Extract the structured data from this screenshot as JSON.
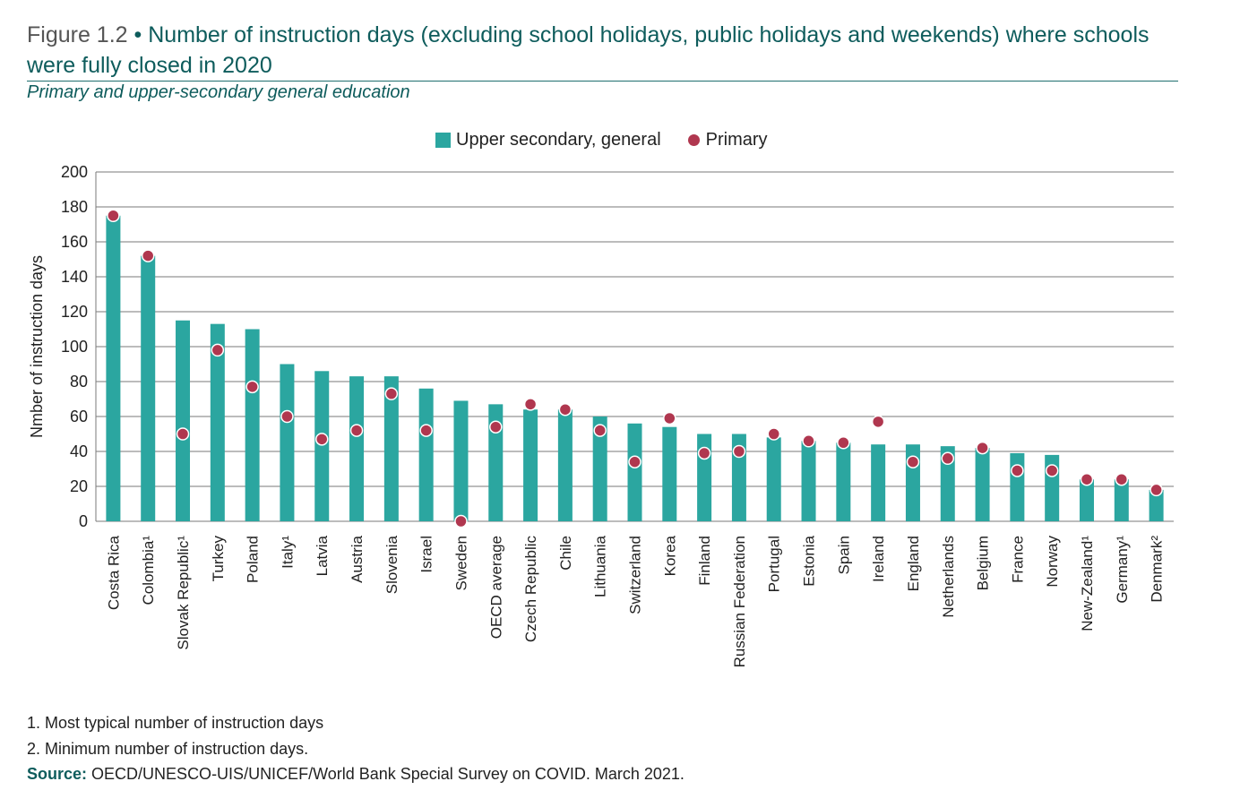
{
  "title": {
    "figure_label": "Figure 1.2",
    "bullet": "•",
    "text": "Number of instruction days (excluding school holidays, public holidays and weekends) where schools were fully closed in 2020"
  },
  "subtitle": "Primary and upper-secondary general education",
  "legend": {
    "series1": "Upper secondary, general",
    "series2": "Primary"
  },
  "colors": {
    "bar": "#2ba6a0",
    "dot": "#b0374f",
    "grid": "#7a7a7a",
    "title": "#0e5c5c"
  },
  "footnotes": {
    "note1": "1. Most typical number of instruction days",
    "note2": "2. Minimum number of instruction days.",
    "source_label": "Source:",
    "source_text": "OECD/UNESCO-UIS/UNICEF/World Bank Special Survey on COVID. March 2021."
  },
  "chart_data": {
    "type": "bar",
    "ylabel": "Nmber of instruction days",
    "xlabel": "",
    "ylim": [
      0,
      200
    ],
    "yticks": [
      0,
      20,
      40,
      60,
      80,
      100,
      120,
      140,
      160,
      180,
      200
    ],
    "grid": true,
    "legend_position": "top-center",
    "categories": [
      "Costa Rica",
      "Colombia¹",
      "Slovak Republic¹",
      "Turkey",
      "Poland",
      "Italy¹",
      "Latvia",
      "Austria",
      "Slovenia",
      "Israel",
      "Sweden",
      "OECD average",
      "Czech Republic",
      "Chile",
      "Lithuania",
      "Switzerland",
      "Korea",
      "Finland",
      "Russian Federation",
      "Portugal",
      "Estonia",
      "Spain",
      "Ireland",
      "England",
      "Netherlands",
      "Belgium",
      "France",
      "Norway",
      "New-Zealand¹",
      "Germany¹",
      "Denmark²"
    ],
    "series": [
      {
        "name": "Upper secondary, general",
        "kind": "bar",
        "values": [
          175,
          152,
          115,
          113,
          110,
          90,
          86,
          83,
          83,
          76,
          69,
          67,
          64,
          64,
          60,
          56,
          54,
          50,
          50,
          48,
          46,
          45,
          44,
          44,
          43,
          42,
          39,
          38,
          24,
          24,
          18
        ]
      },
      {
        "name": "Primary",
        "kind": "dot",
        "values": [
          175,
          152,
          50,
          98,
          77,
          60,
          47,
          52,
          73,
          52,
          0,
          54,
          67,
          64,
          52,
          34,
          59,
          39,
          40,
          50,
          46,
          45,
          57,
          34,
          36,
          42,
          29,
          29,
          24,
          24,
          18
        ]
      }
    ]
  }
}
